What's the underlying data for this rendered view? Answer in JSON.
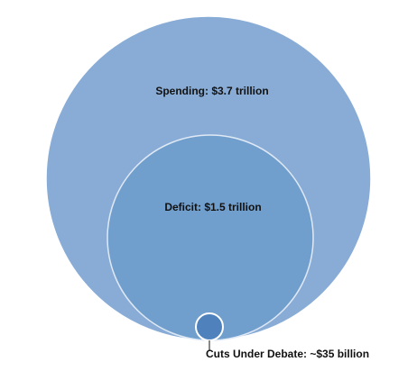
{
  "diagram": {
    "circles": [
      {
        "label": "Spending: $3.7 trillion",
        "value": "3.7 trillion"
      },
      {
        "label": "Deficit: $1.5 trillion",
        "value": "1.5 trillion"
      },
      {
        "label": "Cuts Under Debate: ~$35 billion",
        "value": "~35 billion"
      }
    ],
    "colors": {
      "spending_fill": "#89acd6",
      "deficit_fill": "#719fcd",
      "cuts_fill": "#4f81bd",
      "stroke": "#ffffff",
      "text": "#111111"
    }
  }
}
